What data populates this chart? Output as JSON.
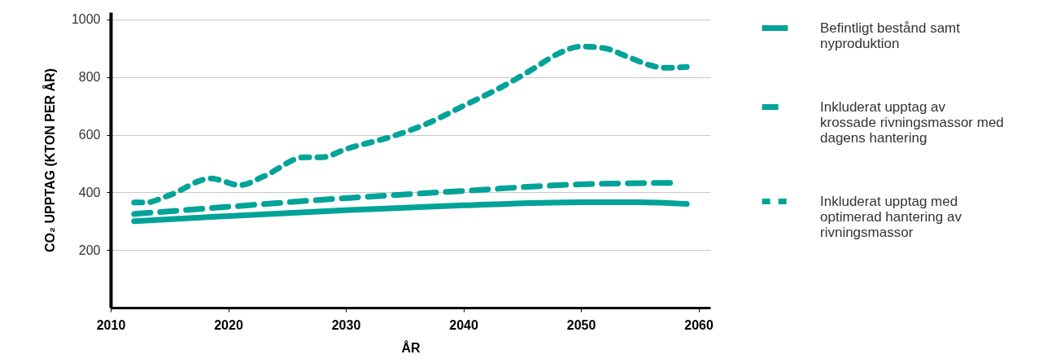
{
  "chart_data": {
    "type": "line",
    "xlabel": "ÅR",
    "ylabel": "CO₂ UPPTAG (KTON PER ÅR)",
    "xlim": [
      2010,
      2061
    ],
    "ylim": [
      0,
      1025
    ],
    "xticks": [
      2010,
      2020,
      2030,
      2040,
      2050,
      2060
    ],
    "yticks": [
      200,
      400,
      600,
      800,
      1000
    ],
    "grid": "y",
    "legend": "right",
    "series": [
      {
        "name": "Befintligt bestånd samt nyproduktion",
        "color": "#00a398",
        "line_style": "solid",
        "x": [
          2012,
          2020,
          2030,
          2040,
          2050,
          2055,
          2059
        ],
        "values": [
          300,
          318,
          338,
          355,
          366,
          366,
          360
        ]
      },
      {
        "name": "Inkluderat upptag av krossade rivningsmassor med dagens hantering",
        "color": "#00a398",
        "line_style": "dashed",
        "x": [
          2012,
          2020,
          2030,
          2040,
          2050,
          2058
        ],
        "values": [
          325,
          350,
          380,
          405,
          428,
          433
        ]
      },
      {
        "name": "Inkluderat upptag med optimerad hantering av rivningsmassor",
        "color": "#00a398",
        "line_style": "dashed",
        "x": [
          2012,
          2013,
          2015,
          2018.5,
          2021,
          2023,
          2026.5,
          2028,
          2030,
          2034,
          2037,
          2040,
          2043,
          2046,
          2048,
          2050,
          2052,
          2054,
          2056,
          2057,
          2059
        ],
        "values": [
          365,
          365,
          390,
          448,
          425,
          455,
          522,
          522,
          550,
          595,
          640,
          700,
          760,
          830,
          880,
          906,
          900,
          870,
          840,
          832,
          835
        ]
      }
    ]
  }
}
